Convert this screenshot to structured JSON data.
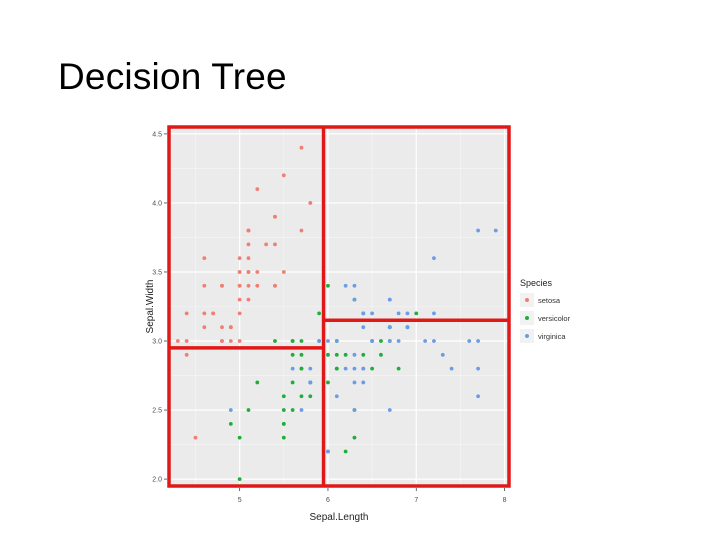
{
  "slide": {
    "title": "Decision Tree"
  },
  "chart_data": {
    "type": "scatter",
    "title": "",
    "xlabel": "Sepal.Length",
    "ylabel": "Sepal.Width",
    "xlim": [
      4.2,
      8.05
    ],
    "ylim": [
      1.95,
      4.55
    ],
    "xticks": [
      5,
      6,
      7,
      8
    ],
    "yticks": [
      2.0,
      2.5,
      3.0,
      3.5,
      4.0,
      4.5
    ],
    "ytick_labels": [
      "2.0",
      "2.5",
      "3.0",
      "3.5",
      "4.0",
      "4.5"
    ],
    "grid": true,
    "legend": {
      "title": "Species",
      "position": "right"
    },
    "series": [
      {
        "name": "setosa",
        "color": "#f07f72",
        "points": [
          [
            5.1,
            3.5
          ],
          [
            4.9,
            3.0
          ],
          [
            4.7,
            3.2
          ],
          [
            4.6,
            3.1
          ],
          [
            5.0,
            3.6
          ],
          [
            5.4,
            3.9
          ],
          [
            4.6,
            3.4
          ],
          [
            5.0,
            3.4
          ],
          [
            4.4,
            2.9
          ],
          [
            4.9,
            3.1
          ],
          [
            5.4,
            3.7
          ],
          [
            4.8,
            3.4
          ],
          [
            4.8,
            3.0
          ],
          [
            4.3,
            3.0
          ],
          [
            5.8,
            4.0
          ],
          [
            5.7,
            4.4
          ],
          [
            5.4,
            3.9
          ],
          [
            5.1,
            3.5
          ],
          [
            5.7,
            3.8
          ],
          [
            5.1,
            3.8
          ],
          [
            5.4,
            3.4
          ],
          [
            5.1,
            3.7
          ],
          [
            4.6,
            3.6
          ],
          [
            5.1,
            3.3
          ],
          [
            4.8,
            3.4
          ],
          [
            5.0,
            3.0
          ],
          [
            5.0,
            3.4
          ],
          [
            5.2,
            3.5
          ],
          [
            5.2,
            3.4
          ],
          [
            4.7,
            3.2
          ],
          [
            4.8,
            3.1
          ],
          [
            5.4,
            3.4
          ],
          [
            5.2,
            4.1
          ],
          [
            5.5,
            4.2
          ],
          [
            4.9,
            3.1
          ],
          [
            5.0,
            3.2
          ],
          [
            5.5,
            3.5
          ],
          [
            4.4,
            3.0
          ],
          [
            5.1,
            3.4
          ],
          [
            5.0,
            3.5
          ],
          [
            4.5,
            2.3
          ],
          [
            4.4,
            3.2
          ],
          [
            5.0,
            3.5
          ],
          [
            5.1,
            3.8
          ],
          [
            4.8,
            3.0
          ],
          [
            5.1,
            3.8
          ],
          [
            4.6,
            3.2
          ],
          [
            5.3,
            3.7
          ],
          [
            5.0,
            3.3
          ],
          [
            5.1,
            3.6
          ]
        ]
      },
      {
        "name": "versicolor",
        "color": "#1fae3a",
        "points": [
          [
            7.0,
            3.2
          ],
          [
            6.4,
            3.2
          ],
          [
            6.9,
            3.1
          ],
          [
            5.5,
            2.3
          ],
          [
            6.5,
            2.8
          ],
          [
            5.7,
            2.8
          ],
          [
            6.3,
            3.3
          ],
          [
            4.9,
            2.4
          ],
          [
            6.6,
            2.9
          ],
          [
            5.2,
            2.7
          ],
          [
            5.0,
            2.0
          ],
          [
            5.9,
            3.0
          ],
          [
            6.0,
            2.2
          ],
          [
            6.1,
            2.9
          ],
          [
            5.6,
            2.9
          ],
          [
            6.7,
            3.1
          ],
          [
            5.6,
            3.0
          ],
          [
            5.8,
            2.7
          ],
          [
            6.2,
            2.2
          ],
          [
            5.6,
            2.5
          ],
          [
            5.9,
            3.2
          ],
          [
            6.1,
            2.8
          ],
          [
            6.3,
            2.5
          ],
          [
            6.1,
            2.8
          ],
          [
            6.4,
            2.9
          ],
          [
            6.6,
            3.0
          ],
          [
            6.8,
            2.8
          ],
          [
            6.7,
            3.0
          ],
          [
            6.0,
            2.9
          ],
          [
            5.7,
            2.6
          ],
          [
            5.5,
            2.4
          ],
          [
            5.5,
            2.4
          ],
          [
            5.8,
            2.7
          ],
          [
            6.0,
            2.7
          ],
          [
            5.4,
            3.0
          ],
          [
            6.0,
            3.4
          ],
          [
            6.7,
            3.1
          ],
          [
            6.3,
            2.3
          ],
          [
            5.6,
            3.0
          ],
          [
            5.5,
            2.5
          ],
          [
            5.5,
            2.6
          ],
          [
            6.1,
            3.0
          ],
          [
            5.8,
            2.6
          ],
          [
            5.0,
            2.3
          ],
          [
            5.6,
            2.7
          ],
          [
            5.7,
            3.0
          ],
          [
            5.7,
            2.9
          ],
          [
            6.2,
            2.9
          ],
          [
            5.1,
            2.5
          ],
          [
            5.7,
            2.8
          ]
        ]
      },
      {
        "name": "virginica",
        "color": "#6b9ce6",
        "points": [
          [
            6.3,
            3.3
          ],
          [
            5.8,
            2.7
          ],
          [
            7.1,
            3.0
          ],
          [
            6.3,
            2.9
          ],
          [
            6.5,
            3.0
          ],
          [
            7.6,
            3.0
          ],
          [
            4.9,
            2.5
          ],
          [
            7.3,
            2.9
          ],
          [
            6.7,
            2.5
          ],
          [
            7.2,
            3.6
          ],
          [
            6.5,
            3.2
          ],
          [
            6.4,
            2.7
          ],
          [
            6.8,
            3.0
          ],
          [
            5.7,
            2.5
          ],
          [
            5.8,
            2.8
          ],
          [
            6.4,
            3.2
          ],
          [
            6.5,
            3.0
          ],
          [
            7.7,
            3.8
          ],
          [
            7.7,
            2.6
          ],
          [
            6.0,
            2.2
          ],
          [
            6.9,
            3.2
          ],
          [
            5.6,
            2.8
          ],
          [
            7.7,
            2.8
          ],
          [
            6.3,
            2.7
          ],
          [
            6.7,
            3.3
          ],
          [
            7.2,
            3.2
          ],
          [
            6.2,
            2.8
          ],
          [
            6.1,
            3.0
          ],
          [
            6.4,
            2.8
          ],
          [
            7.2,
            3.0
          ],
          [
            7.4,
            2.8
          ],
          [
            7.9,
            3.8
          ],
          [
            6.4,
            2.8
          ],
          [
            6.3,
            2.8
          ],
          [
            6.1,
            2.6
          ],
          [
            7.7,
            3.0
          ],
          [
            6.3,
            3.4
          ],
          [
            6.4,
            3.1
          ],
          [
            6.0,
            3.0
          ],
          [
            6.9,
            3.1
          ],
          [
            6.7,
            3.1
          ],
          [
            6.9,
            3.1
          ],
          [
            5.8,
            2.7
          ],
          [
            6.8,
            3.2
          ],
          [
            6.7,
            3.3
          ],
          [
            6.7,
            3.0
          ],
          [
            6.3,
            2.5
          ],
          [
            6.5,
            3.0
          ],
          [
            6.2,
            3.4
          ],
          [
            5.9,
            3.0
          ]
        ]
      }
    ],
    "annotations": {
      "split_color": "#e01818",
      "splits": [
        {
          "axis": "x",
          "value": 5.95
        },
        {
          "axis": "y",
          "value": 2.95,
          "xrange": [
            4.2,
            5.95
          ]
        },
        {
          "axis": "y",
          "value": 3.15,
          "xrange": [
            5.95,
            8.05
          ]
        }
      ]
    }
  }
}
